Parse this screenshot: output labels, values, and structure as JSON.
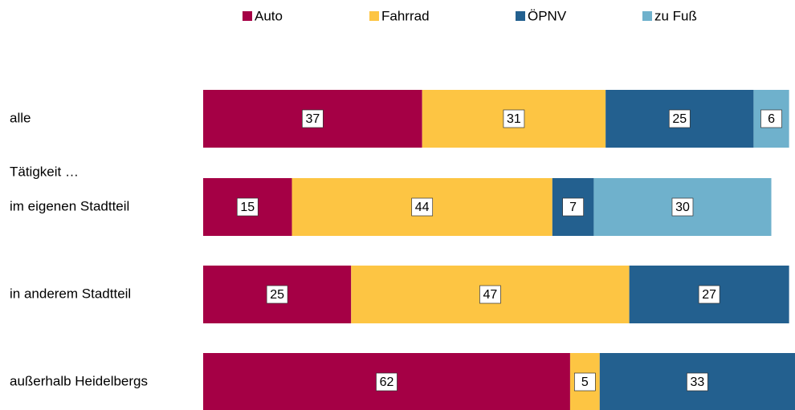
{
  "chart_data": {
    "type": "stacked-barh",
    "categories": [
      "alle",
      "im eigenen Stadtteil",
      "in anderem Stadtteil",
      "außerhalb Heidelbergs"
    ],
    "annotation": "Tätigkeit …",
    "series": [
      {
        "name": "Auto",
        "color": "#a50045",
        "values": [
          37,
          15,
          25,
          62
        ]
      },
      {
        "name": "Fahrrad",
        "color": "#fdc543",
        "values": [
          31,
          44,
          47,
          5
        ]
      },
      {
        "name": "ÖPNV",
        "color": "#23608f",
        "values": [
          25,
          7,
          27,
          33
        ]
      },
      {
        "name": "zu Fuß",
        "color": "#6fb1cc",
        "values": [
          6,
          30,
          null,
          null
        ]
      }
    ],
    "xlim": [
      0,
      100
    ],
    "legend": "top"
  }
}
